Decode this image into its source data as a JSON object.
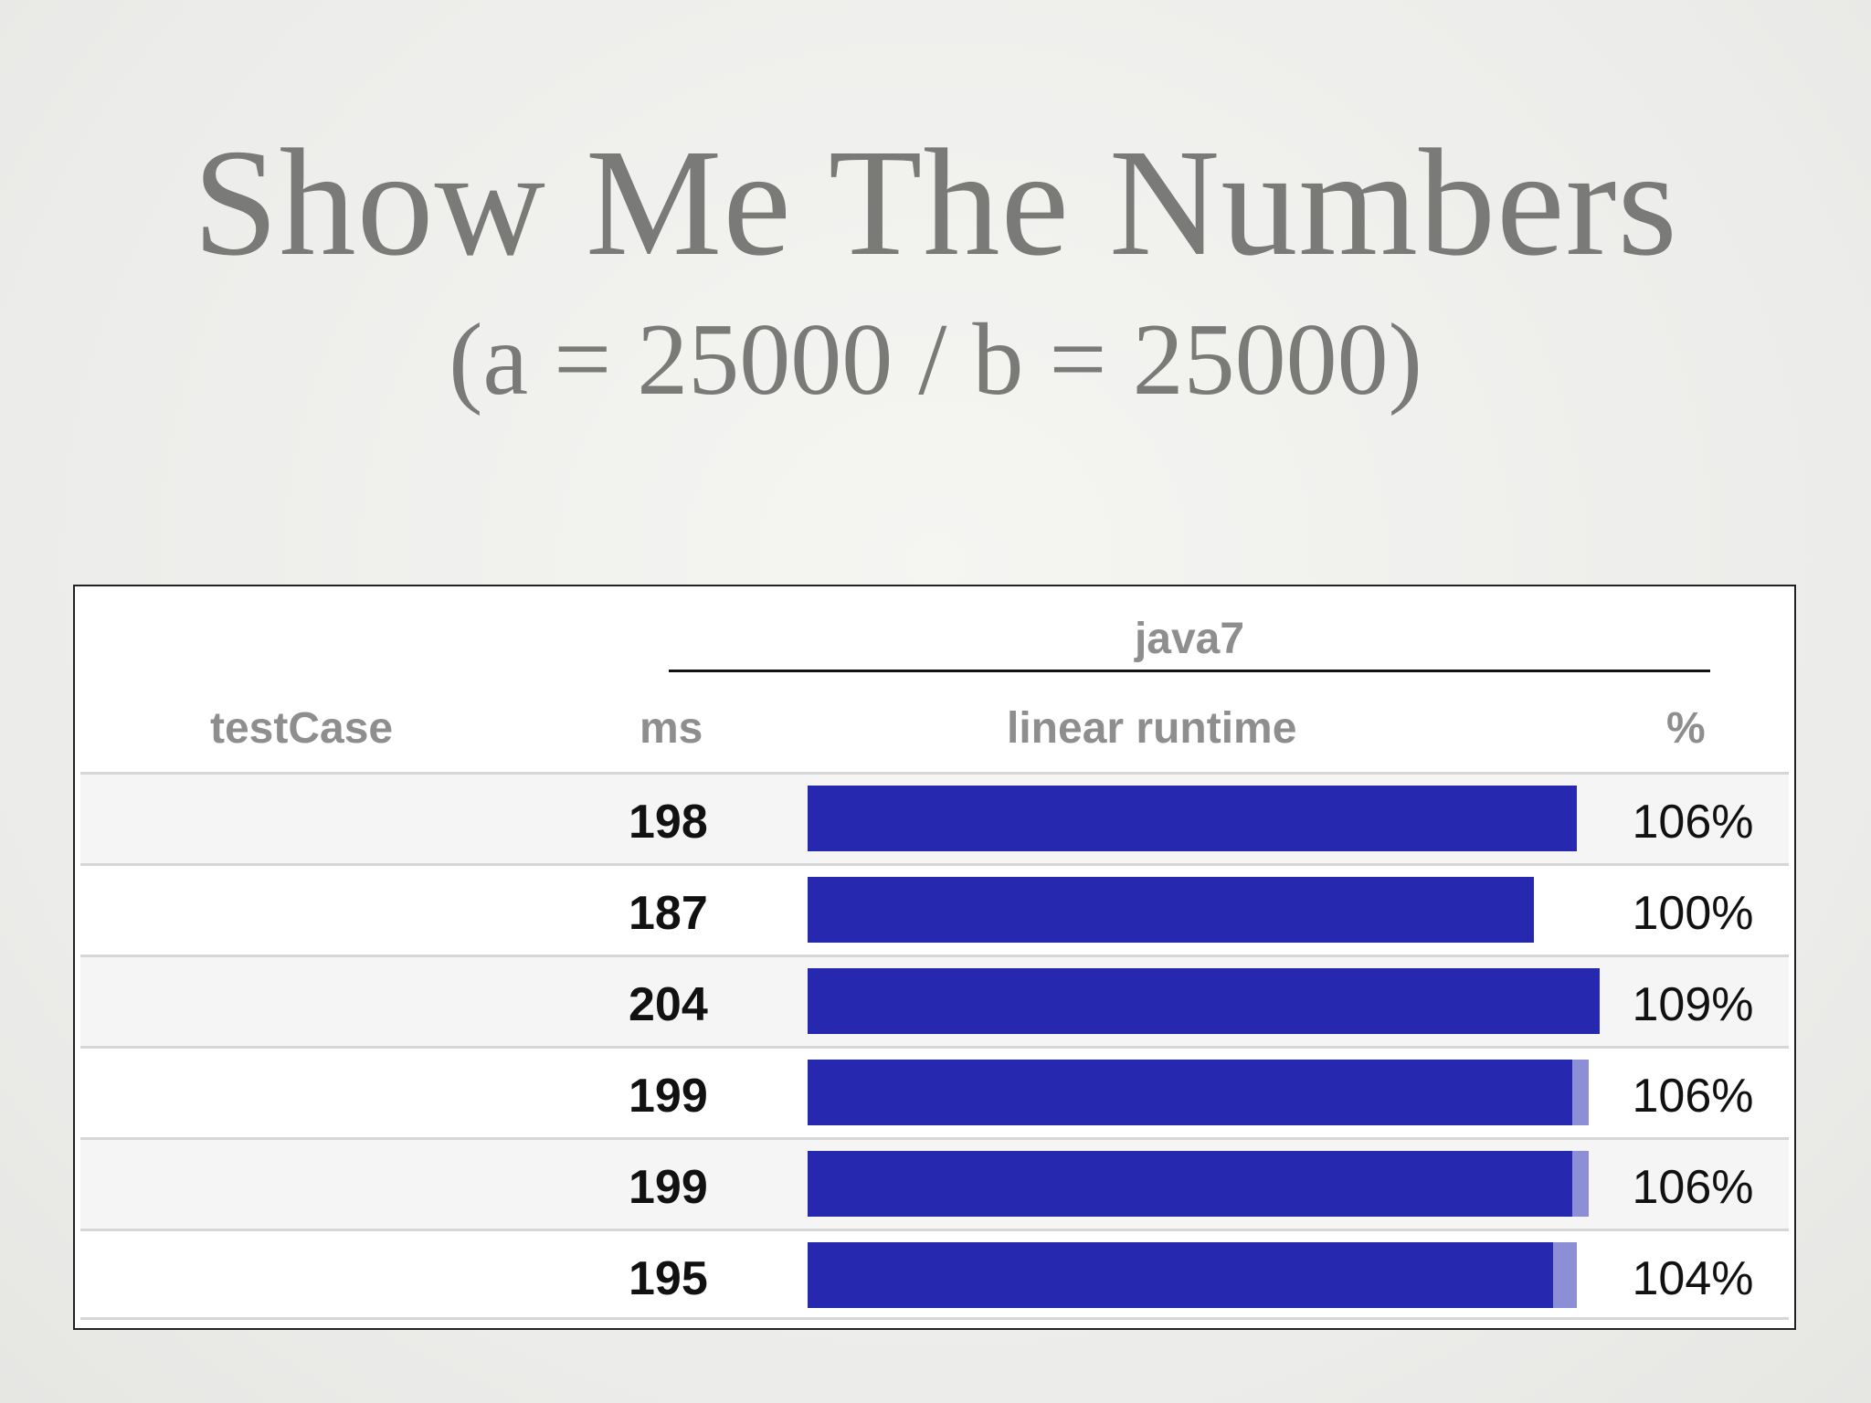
{
  "title": "Show Me The Numbers",
  "subtitle": "(a = 25000 / b = 25000)",
  "colors": {
    "bar": "#2628b0",
    "error": "#8c8ed6",
    "header_text": "#8e8e8e",
    "title_text": "#7a7a78"
  },
  "chart_data": {
    "type": "bar",
    "group_header": "java7",
    "columns": {
      "testCase": "testCase",
      "ms": "ms",
      "linear_runtime": "linear runtime",
      "percent": "%"
    },
    "rows": [
      {
        "ms": "198",
        "value": 198,
        "error": 0,
        "percent": "106%"
      },
      {
        "ms": "187",
        "value": 187,
        "error": 0,
        "percent": "100%"
      },
      {
        "ms": "204",
        "value": 204,
        "error": 0,
        "percent": "109%"
      },
      {
        "ms": "199",
        "value": 199,
        "error": 2,
        "percent": "106%"
      },
      {
        "ms": "199",
        "value": 199,
        "error": 2,
        "percent": "106%"
      },
      {
        "ms": "195",
        "value": 195,
        "error": 3,
        "percent": "104%"
      }
    ],
    "xlim": [
      0,
      238
    ]
  }
}
